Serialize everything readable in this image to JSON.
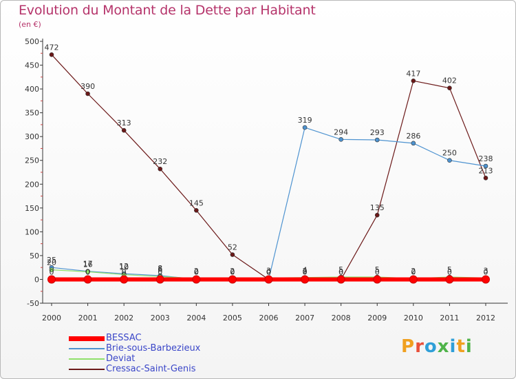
{
  "header": {
    "title": "Evolution du Montant de la Dette par Habitant",
    "unit": "(en €)"
  },
  "chart_data": {
    "type": "line",
    "title": "Evolution du Montant de la Dette par Habitant",
    "ylabel": "(en €)",
    "xlabel": "",
    "x": [
      "2000",
      "2001",
      "2002",
      "2003",
      "2004",
      "2005",
      "2006",
      "2007",
      "2008",
      "2009",
      "2010",
      "2011",
      "2012"
    ],
    "ylim": [
      -50,
      500
    ],
    "yticks": [
      -50,
      0,
      50,
      100,
      150,
      200,
      250,
      300,
      350,
      400,
      450,
      500
    ],
    "grid": false,
    "series": [
      {
        "name": "Cressac-Saint-Genis",
        "color": "#6b1818",
        "values": [
          472,
          390,
          313,
          232,
          145,
          52,
          0,
          2,
          0,
          135,
          417,
          402,
          213
        ],
        "labels": [
          "472",
          "390",
          "313",
          "232",
          "145",
          "52",
          "0",
          "2",
          "0",
          "135",
          "417",
          "402",
          "213"
        ]
      },
      {
        "name": "Brie-sous-Barbezieux",
        "color": "#4e93d0",
        "values": [
          25,
          17,
          12,
          8,
          0,
          0,
          0,
          319,
          294,
          293,
          286,
          250,
          238
        ],
        "labels": [
          "25",
          "17",
          "12",
          "8",
          "0",
          "0",
          "0",
          "319",
          "294",
          "293",
          "286",
          "250",
          "238"
        ]
      },
      {
        "name": "Deviat",
        "color": "#8fe06a",
        "values": [
          20,
          16,
          10,
          6,
          2,
          2,
          3,
          4,
          5,
          5,
          2,
          5,
          3
        ],
        "labels": [
          "20",
          "16",
          "10",
          "6",
          "2",
          "2",
          "3",
          "4",
          "5",
          "5",
          "2",
          "5",
          "3"
        ]
      },
      {
        "name": "BESSAC",
        "color": "#ff0000",
        "values": [
          0,
          0,
          0,
          0,
          0,
          0,
          0,
          0,
          0,
          0,
          0,
          0,
          0
        ],
        "labels": [
          "0",
          "0",
          "0",
          "0",
          "0",
          "0",
          "0",
          "0",
          "0",
          "0",
          "0",
          "0",
          "0"
        ]
      }
    ]
  },
  "legend": {
    "items": [
      {
        "label": "BESSAC",
        "color": "#ff0000"
      },
      {
        "label": "Brie-sous-Barbezieux",
        "color": "#4e93d0"
      },
      {
        "label": "Deviat",
        "color": "#8fe06a"
      },
      {
        "label": "Cressac-Saint-Genis",
        "color": "#6b1818"
      }
    ]
  },
  "logo": {
    "letters": [
      "P",
      "r",
      "o",
      "x",
      "i",
      "t",
      "i"
    ],
    "colors": [
      "#f0a020",
      "#e8503a",
      "#2f9fd8",
      "#4fb34a",
      "#2f9fd8",
      "#f0a020",
      "#4fb34a"
    ]
  }
}
